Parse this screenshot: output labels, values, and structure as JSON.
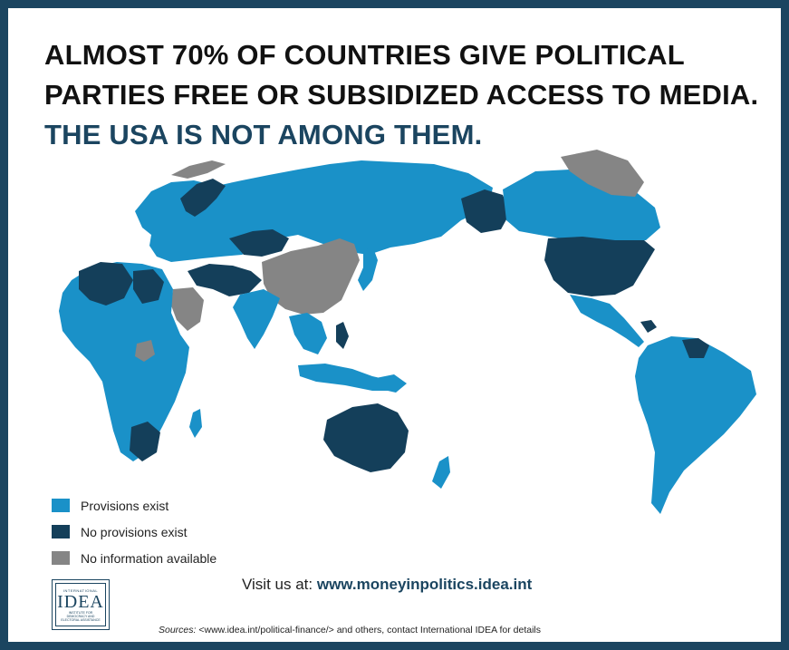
{
  "headline": {
    "line1": "ALMOST 70% OF COUNTRIES GIVE POLITICAL",
    "line2": "PARTIES FREE OR SUBSIDIZED ACCESS TO MEDIA.",
    "line3": "THE USA IS NOT AMONG THEM."
  },
  "colors": {
    "provisions_exist": "#1a91c8",
    "no_provisions": "#143f5a",
    "no_information": "#858585",
    "frame": "#1b4560"
  },
  "legend": {
    "items": [
      {
        "label": "Provisions exist",
        "color": "#1a91c8"
      },
      {
        "label": "No provisions exist",
        "color": "#143f5a"
      },
      {
        "label": "No information available",
        "color": "#858585"
      }
    ]
  },
  "logo": {
    "top_text": "INTERNATIONAL",
    "word": "IDEA",
    "bottom_line1": "INSTITUTE FOR",
    "bottom_line2": "DEMOCRACY AND",
    "bottom_line3": "ELECTORAL ASSISTANCE"
  },
  "footer": {
    "visit_label": "Visit us at:",
    "visit_url": "www.moneyinpolitics.idea.int",
    "sources_label": "Sources:",
    "sources_text": "<www.idea.int/political-finance/> and others, contact International IDEA for details"
  },
  "map": {
    "regions": [
      {
        "name": "europe-russia-region",
        "status": "provisions_exist"
      },
      {
        "name": "africa-region",
        "status": "provisions_exist"
      },
      {
        "name": "south-america-region",
        "status": "provisions_exist"
      },
      {
        "name": "canada-region",
        "status": "provisions_exist"
      },
      {
        "name": "india-region",
        "status": "provisions_exist"
      },
      {
        "name": "usa-region",
        "status": "no_provisions"
      },
      {
        "name": "australia-region",
        "status": "no_provisions"
      },
      {
        "name": "alaska-region",
        "status": "no_provisions"
      },
      {
        "name": "china-region",
        "status": "no_information"
      },
      {
        "name": "greenland-region",
        "status": "no_information"
      },
      {
        "name": "saudi-arabia-region",
        "status": "no_information"
      }
    ]
  }
}
